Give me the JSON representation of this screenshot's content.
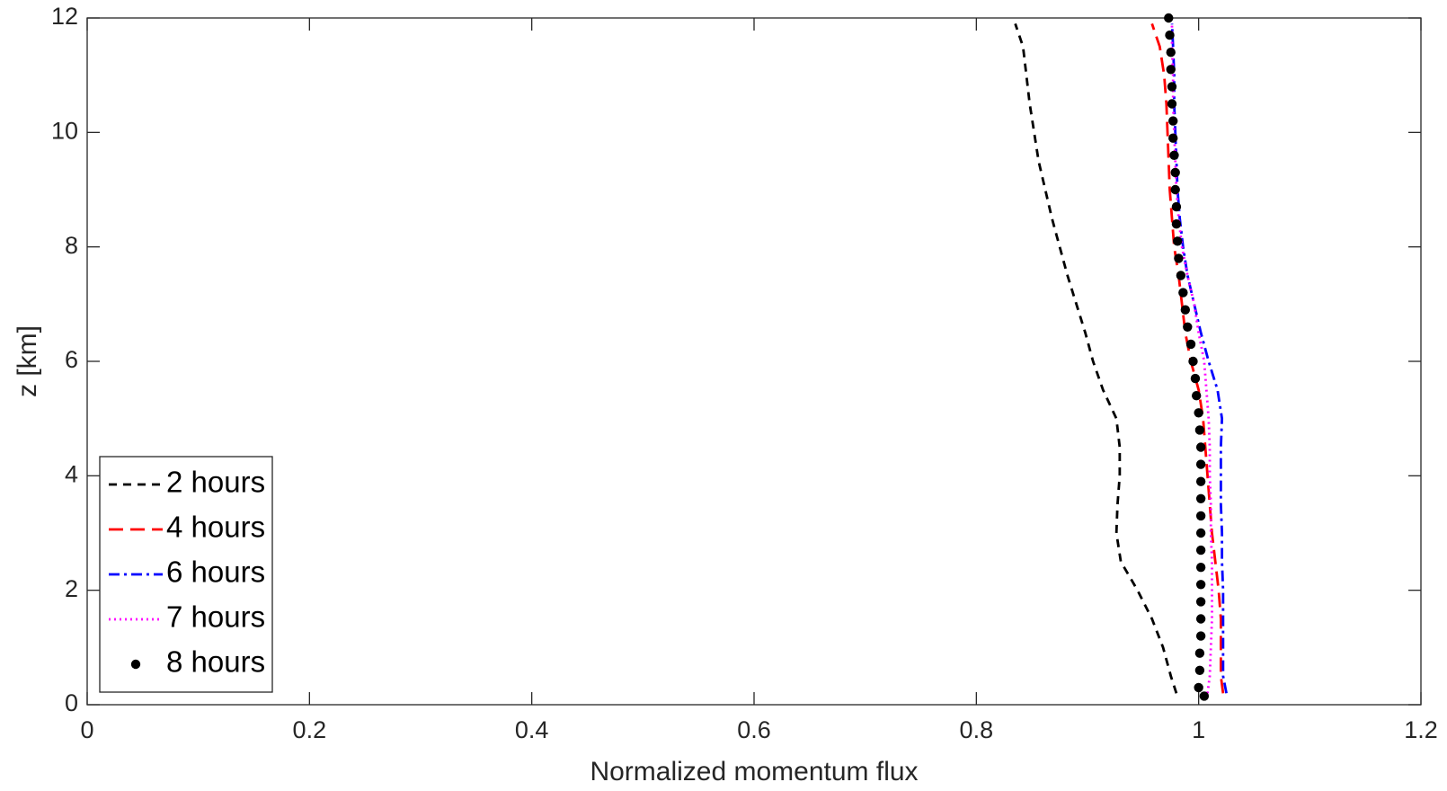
{
  "chart_data": {
    "type": "line",
    "xlabel": "Normalized momentum flux",
    "ylabel": "z [km]",
    "xlim": [
      0,
      1.2
    ],
    "ylim": [
      0,
      12
    ],
    "xticks": [
      0,
      0.2,
      0.4,
      0.6,
      0.8,
      1,
      1.2
    ],
    "yticks": [
      0,
      2,
      4,
      6,
      8,
      10,
      12
    ],
    "grid": false,
    "legend": "lower left",
    "series": [
      {
        "name": "2 hours",
        "color": "#000000",
        "style": "dashed",
        "x": [
          0.98,
          0.975,
          0.968,
          0.958,
          0.945,
          0.93,
          0.926,
          0.927,
          0.929,
          0.929,
          0.926,
          0.914,
          0.905,
          0.898,
          0.89,
          0.882,
          0.875,
          0.868,
          0.862,
          0.856,
          0.852,
          0.848,
          0.845,
          0.842,
          0.835
        ],
        "y": [
          0.2,
          0.5,
          1,
          1.5,
          2,
          2.5,
          3,
          3.5,
          4,
          4.5,
          5,
          5.5,
          6,
          6.5,
          7,
          7.5,
          8,
          8.5,
          9,
          9.5,
          10,
          10.5,
          11,
          11.5,
          11.9
        ]
      },
      {
        "name": "4 hours",
        "color": "#ff0000",
        "style": "longdash",
        "x": [
          1.022,
          1.02,
          1.02,
          1.02,
          1.018,
          1.015,
          1.012,
          1.01,
          1.008,
          1.006,
          1.004,
          1.0,
          0.993,
          0.988,
          0.985,
          0.982,
          0.978,
          0.976,
          0.974,
          0.973,
          0.972,
          0.971,
          0.969,
          0.965,
          0.958
        ],
        "y": [
          0.2,
          0.5,
          1,
          1.5,
          2,
          2.5,
          3,
          3.5,
          4,
          4.5,
          5,
          5.5,
          6,
          6.5,
          7,
          7.5,
          8,
          8.5,
          9,
          9.5,
          10,
          10.5,
          11,
          11.5,
          11.9
        ]
      },
      {
        "name": "6 hours",
        "color": "#0000ff",
        "style": "dashdot",
        "x": [
          1.025,
          1.022,
          1.022,
          1.022,
          1.022,
          1.021,
          1.021,
          1.02,
          1.02,
          1.02,
          1.021,
          1.017,
          1.009,
          1.002,
          0.996,
          0.99,
          0.986,
          0.983,
          0.981,
          0.98,
          0.979,
          0.978,
          0.978,
          0.977,
          0.976
        ],
        "y": [
          0.2,
          0.5,
          1,
          1.5,
          2,
          2.5,
          3,
          3.5,
          4,
          4.5,
          5,
          5.5,
          6,
          6.5,
          7,
          7.5,
          8,
          8.5,
          9,
          9.5,
          10,
          10.5,
          11,
          11.5,
          11.9
        ]
      },
      {
        "name": "7 hours",
        "color": "#ff00ff",
        "style": "dotted",
        "x": [
          1.008,
          1.01,
          1.011,
          1.012,
          1.012,
          1.012,
          1.011,
          1.011,
          1.01,
          1.01,
          1.009,
          1.007,
          1.005,
          1.0,
          0.996,
          0.99,
          0.985,
          0.982,
          0.98,
          0.979,
          0.978,
          0.977,
          0.977,
          0.976,
          0.976
        ],
        "y": [
          0.2,
          0.5,
          1,
          1.5,
          2,
          2.5,
          3,
          3.5,
          4,
          4.5,
          5,
          5.5,
          6,
          6.5,
          7,
          7.5,
          8,
          8.5,
          9,
          9.5,
          10,
          10.5,
          11,
          11.5,
          11.9
        ]
      },
      {
        "name": "8 hours",
        "color": "#000000",
        "style": "markers",
        "x": [
          1.005,
          1.0,
          1.001,
          1.001,
          1.002,
          1.002,
          1.002,
          1.002,
          1.002,
          1.002,
          1.002,
          1.002,
          1.002,
          1.002,
          1.002,
          1.002,
          1.001,
          1.0,
          0.998,
          0.997,
          0.995,
          0.993,
          0.99,
          0.988,
          0.986,
          0.984,
          0.982,
          0.981,
          0.98,
          0.98,
          0.979,
          0.979,
          0.978,
          0.977,
          0.977,
          0.976,
          0.976,
          0.975,
          0.975,
          0.974,
          0.973
        ],
        "y": [
          0.15,
          0.3,
          0.6,
          0.9,
          1.2,
          1.5,
          1.8,
          2.1,
          2.4,
          2.7,
          3.0,
          3.3,
          3.6,
          3.9,
          4.2,
          4.5,
          4.8,
          5.1,
          5.4,
          5.7,
          6.0,
          6.3,
          6.6,
          6.9,
          7.2,
          7.5,
          7.8,
          8.1,
          8.4,
          8.7,
          9.0,
          9.3,
          9.6,
          9.9,
          10.2,
          10.5,
          10.8,
          11.1,
          11.4,
          11.7,
          12.0
        ]
      }
    ]
  }
}
